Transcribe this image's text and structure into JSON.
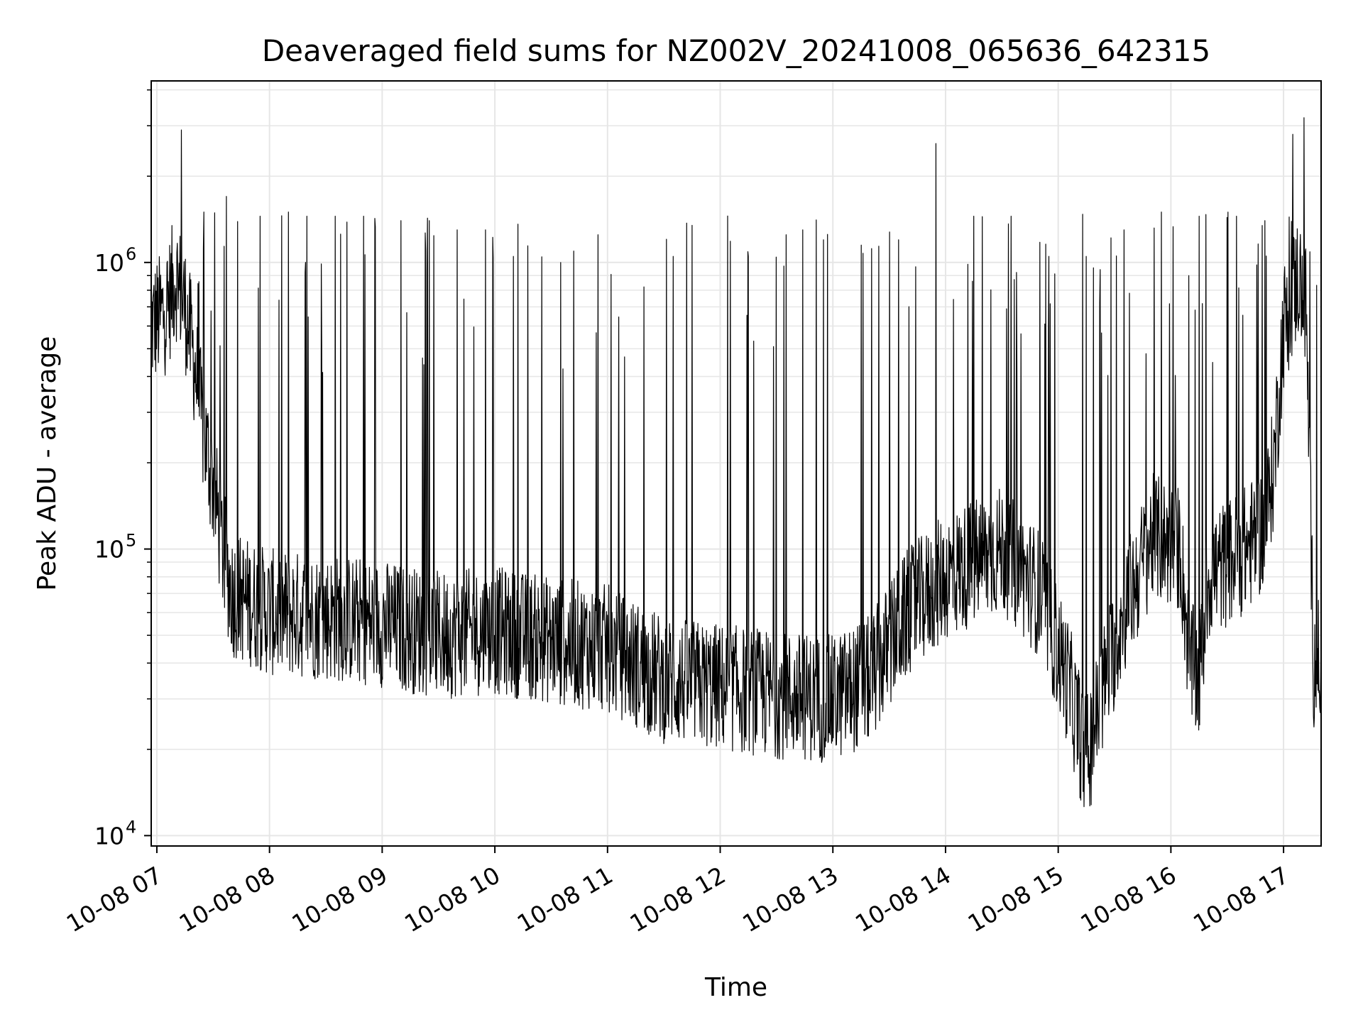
{
  "chart_data": {
    "type": "line",
    "title": "Deaveraged field sums for NZ002V_20241008_065636_642315",
    "xlabel": "Time",
    "ylabel": "Peak ADU - average",
    "x_range": [
      "2024-10-08 06:57",
      "2024-10-08 17:20"
    ],
    "y_range": [
      9200,
      4300000
    ],
    "y_scale": "log",
    "x_ticks": [
      "10-08 07",
      "10-08 08",
      "10-08 09",
      "10-08 10",
      "10-08 11",
      "10-08 12",
      "10-08 13",
      "10-08 14",
      "10-08 15",
      "10-08 16",
      "10-08 17"
    ],
    "y_ticks": [
      {
        "value": 10000,
        "base": "10",
        "exp": "4"
      },
      {
        "value": 100000,
        "base": "10",
        "exp": "5"
      },
      {
        "value": 1000000,
        "base": "10",
        "exp": "6"
      }
    ],
    "grid": true,
    "line_color": "#000000",
    "grid_color": "#e6e6e6",
    "series": [
      {
        "baseline": [
          [
            "2024-10-08 06:57",
            600000
          ],
          [
            "2024-10-08 07:05",
            680000
          ],
          [
            "2024-10-08 07:10",
            900000
          ],
          [
            "2024-10-08 07:15",
            700000
          ],
          [
            "2024-10-08 07:20",
            450000
          ],
          [
            "2024-10-08 07:25",
            250000
          ],
          [
            "2024-10-08 07:30",
            170000
          ],
          [
            "2024-10-08 07:35",
            100000
          ],
          [
            "2024-10-08 07:40",
            70000
          ],
          [
            "2024-10-08 08:00",
            60000
          ],
          [
            "2024-10-08 08:30",
            58000
          ],
          [
            "2024-10-08 09:00",
            55000
          ],
          [
            "2024-10-08 09:30",
            50000
          ],
          [
            "2024-10-08 10:00",
            52000
          ],
          [
            "2024-10-08 10:30",
            48000
          ],
          [
            "2024-10-08 11:00",
            45000
          ],
          [
            "2024-10-08 11:30",
            35000
          ],
          [
            "2024-10-08 12:00",
            33000
          ],
          [
            "2024-10-08 12:30",
            31000
          ],
          [
            "2024-10-08 13:00",
            30000
          ],
          [
            "2024-10-08 13:20",
            35000
          ],
          [
            "2024-10-08 13:40",
            60000
          ],
          [
            "2024-10-08 14:00",
            80000
          ],
          [
            "2024-10-08 14:30",
            100000
          ],
          [
            "2024-10-08 14:50",
            70000
          ],
          [
            "2024-10-08 15:05",
            35000
          ],
          [
            "2024-10-08 15:15",
            18000
          ],
          [
            "2024-10-08 15:25",
            35000
          ],
          [
            "2024-10-08 15:35",
            60000
          ],
          [
            "2024-10-08 15:50",
            110000
          ],
          [
            "2024-10-08 16:05",
            100000
          ],
          [
            "2024-10-08 16:10",
            40000
          ],
          [
            "2024-10-08 16:15",
            35000
          ],
          [
            "2024-10-08 16:20",
            80000
          ],
          [
            "2024-10-08 16:40",
            100000
          ],
          [
            "2024-10-08 16:50",
            120000
          ],
          [
            "2024-10-08 16:55",
            200000
          ],
          [
            "2024-10-08 17:00",
            600000
          ],
          [
            "2024-10-08 17:08",
            900000
          ],
          [
            "2024-10-08 17:12",
            700000
          ],
          [
            "2024-10-08 17:16",
            40000
          ],
          [
            "2024-10-08 17:20",
            40000
          ]
        ],
        "spikes": [
          [
            "2024-10-08 07:13",
            2900000
          ],
          [
            "2024-10-08 07:25",
            1500000
          ],
          [
            "2024-10-08 07:37",
            1700000
          ],
          [
            "2024-10-08 07:55",
            1450000
          ],
          [
            "2024-10-08 08:10",
            1500000
          ],
          [
            "2024-10-08 08:20",
            1450000
          ],
          [
            "2024-10-08 08:35",
            1450000
          ],
          [
            "2024-10-08 08:50",
            1450000
          ],
          [
            "2024-10-08 09:10",
            1400000
          ],
          [
            "2024-10-08 09:25",
            1400000
          ],
          [
            "2024-10-08 09:40",
            1300000
          ],
          [
            "2024-10-08 09:55",
            1300000
          ],
          [
            "2024-10-08 10:10",
            1050000
          ],
          [
            "2024-10-08 10:35",
            1000000
          ],
          [
            "2024-10-08 10:55",
            1250000
          ],
          [
            "2024-10-08 11:35",
            1050000
          ],
          [
            "2024-10-08 12:15",
            1050000
          ],
          [
            "2024-10-08 12:35",
            1250000
          ],
          [
            "2024-10-08 12:55",
            1200000
          ],
          [
            "2024-10-08 13:15",
            1150000
          ],
          [
            "2024-10-08 13:35",
            1200000
          ],
          [
            "2024-10-08 13:55",
            2600000
          ],
          [
            "2024-10-08 14:15",
            1450000
          ],
          [
            "2024-10-08 14:35",
            1450000
          ],
          [
            "2024-10-08 14:55",
            1050000
          ],
          [
            "2024-10-08 15:15",
            1050000
          ],
          [
            "2024-10-08 15:35",
            1300000
          ],
          [
            "2024-10-08 15:55",
            1500000
          ],
          [
            "2024-10-08 16:15",
            1450000
          ],
          [
            "2024-10-08 16:35",
            1450000
          ],
          [
            "2024-10-08 16:50",
            1400000
          ],
          [
            "2024-10-08 17:05",
            2800000
          ],
          [
            "2024-10-08 17:11",
            3200000
          ]
        ]
      }
    ]
  }
}
